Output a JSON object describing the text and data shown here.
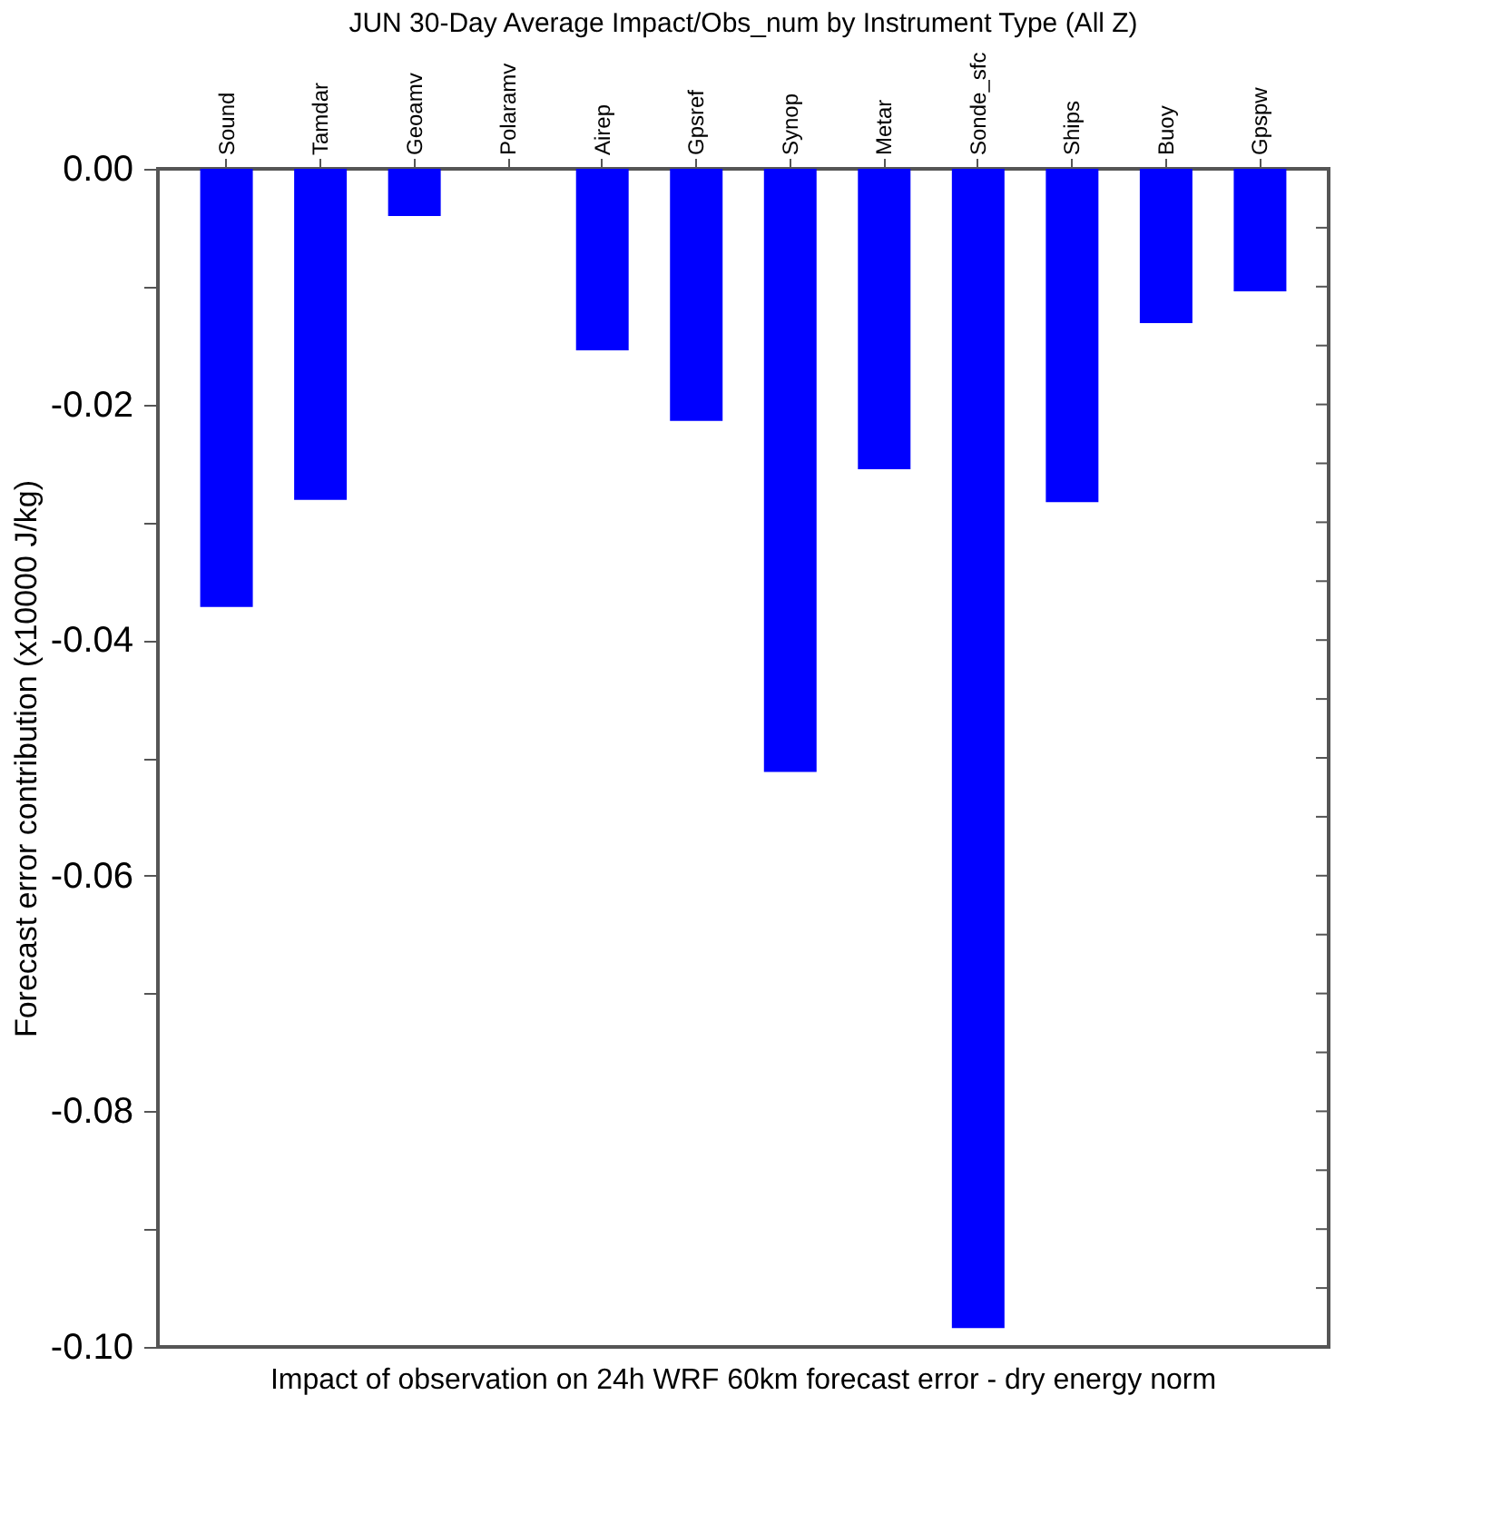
{
  "chart_data": {
    "type": "bar",
    "title": "JUN 30-Day Average Impact/Obs_num by Instrument Type (All Z)",
    "xlabel": "Impact of observation on 24h WRF 60km forecast error - dry energy norm",
    "ylabel": "Forecast error contribution (x10000 J/kg)",
    "categories": [
      "Sound",
      "Tamdar",
      "Geoamv",
      "Polaramv",
      "Airep",
      "Gpsref",
      "Synop",
      "Metar",
      "Sonde_sfc",
      "Ships",
      "Buoy",
      "Gpspw"
    ],
    "values": [
      -0.0372,
      -0.0281,
      -0.004,
      0,
      -0.0154,
      -0.0214,
      -0.0512,
      -0.0255,
      -0.0984,
      -0.0283,
      -0.0131,
      -0.0104
    ],
    "color": "#0000ff",
    "ylim": [
      -0.1,
      0
    ],
    "yticks": [
      {
        "value": 0,
        "label": "0.00"
      },
      {
        "value": -0.005,
        "label": null
      },
      {
        "value": -0.01,
        "label": null
      },
      {
        "value": -0.015,
        "label": null
      },
      {
        "value": -0.02,
        "label": "-0.02"
      },
      {
        "value": -0.025,
        "label": null
      },
      {
        "value": -0.03,
        "label": null
      },
      {
        "value": -0.035,
        "label": null
      },
      {
        "value": -0.04,
        "label": "-0.04"
      },
      {
        "value": -0.045,
        "label": null
      },
      {
        "value": -0.05,
        "label": null
      },
      {
        "value": -0.055,
        "label": null
      },
      {
        "value": -0.06,
        "label": "-0.06"
      },
      {
        "value": -0.065,
        "label": null
      },
      {
        "value": -0.07,
        "label": null
      },
      {
        "value": -0.075,
        "label": null
      },
      {
        "value": -0.08,
        "label": "-0.08"
      },
      {
        "value": -0.085,
        "label": null
      },
      {
        "value": -0.09,
        "label": null
      },
      {
        "value": -0.095,
        "label": null
      },
      {
        "value": -0.1,
        "label": "-0.10"
      }
    ],
    "grid": false
  }
}
